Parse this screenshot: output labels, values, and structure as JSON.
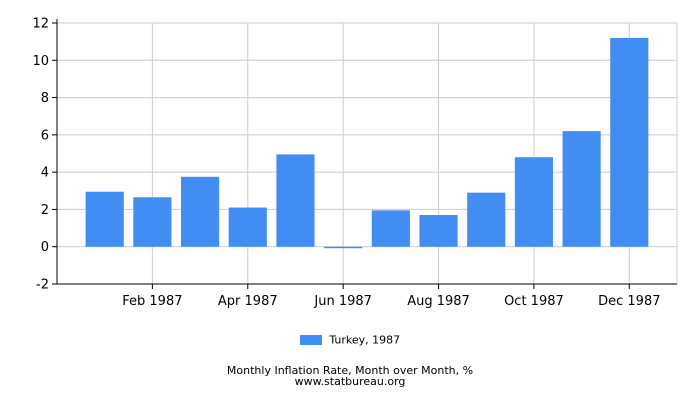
{
  "chart_data": {
    "type": "bar",
    "categories": [
      "Jan 1987",
      "Feb 1987",
      "Mar 1987",
      "Apr 1987",
      "May 1987",
      "Jun 1987",
      "Jul 1987",
      "Aug 1987",
      "Sep 1987",
      "Oct 1987",
      "Nov 1987",
      "Dec 1987"
    ],
    "x_tick_labels": [
      "Feb 1987",
      "Apr 1987",
      "Jun 1987",
      "Aug 1987",
      "Oct 1987",
      "Dec 1987"
    ],
    "y_ticks": [
      "-2",
      "0",
      "2",
      "4",
      "6",
      "8",
      "10",
      "12"
    ],
    "series": [
      {
        "name": "Turkey, 1987",
        "color": "#428df1",
        "values": [
          2.95,
          2.65,
          3.75,
          2.1,
          4.95,
          -0.05,
          1.95,
          1.7,
          2.9,
          4.8,
          6.2,
          11.2
        ]
      }
    ],
    "ylim": [
      -2,
      12
    ],
    "grid": true,
    "legend_position": "bottom",
    "title": "Monthly Inflation Rate, Month over Month, %",
    "source": "www.statbureau.org"
  }
}
